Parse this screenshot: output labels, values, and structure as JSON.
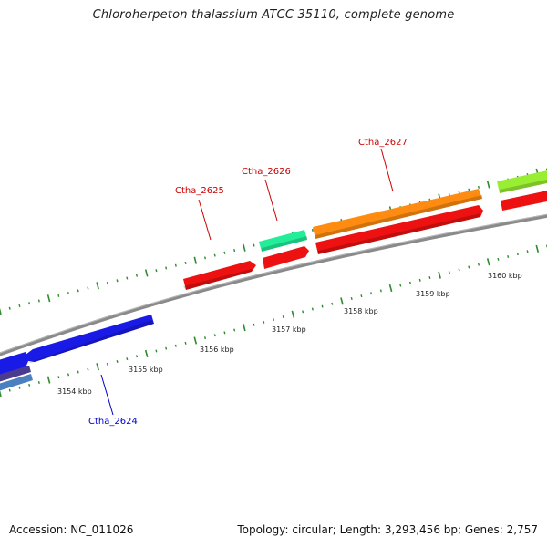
{
  "title": "Chloroherpeton thalassium ATCC 35110, complete genome",
  "footer": {
    "accession": "Accession: NC_011026",
    "summary": "Topology: circular; Length: 3,293,456 bp; Genes: 2,757"
  },
  "colors": {
    "backbone": "#8a8a8a",
    "tick": "#2e8b2e",
    "label_red": "#cc0000",
    "label_blue": "#0000cc"
  },
  "scale_labels": [
    "3154 kbp",
    "3155 kbp",
    "3156 kbp",
    "3157 kbp",
    "3158 kbp",
    "3159 kbp",
    "3160 kbp"
  ],
  "gene_labels": [
    {
      "name": "Ctha_2624",
      "color": "#0000cc"
    },
    {
      "name": "Ctha_2625",
      "color": "#cc0000"
    },
    {
      "name": "Ctha_2626",
      "color": "#cc0000"
    },
    {
      "name": "Ctha_2627",
      "color": "#cc0000"
    }
  ],
  "features": [
    {
      "name": "blue-gene-left",
      "color": "#1a1ae6"
    },
    {
      "name": "blue-gene-ctha-2624",
      "color": "#1a1ae6"
    },
    {
      "name": "navy-gene-left",
      "color": "#4b3b8f"
    },
    {
      "name": "steelblue-gene-left",
      "color": "#4a7fc0"
    },
    {
      "name": "red-gene-ctha-2625",
      "color": "#ee1111"
    },
    {
      "name": "teal-gene-ctha-2626",
      "color": "#22ee99"
    },
    {
      "name": "red-gene-ctha-2626",
      "color": "#ee1111"
    },
    {
      "name": "orange-gene-ctha-2627",
      "color": "#ff8c10"
    },
    {
      "name": "red-gene-ctha-2627",
      "color": "#ee1111"
    },
    {
      "name": "lime-gene-right",
      "color": "#99ee33"
    },
    {
      "name": "red-gene-right",
      "color": "#ee1111"
    }
  ]
}
